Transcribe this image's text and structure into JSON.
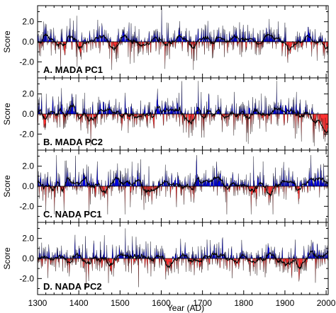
{
  "chart_data": {
    "type": "area",
    "xlabel": "Year (AD)",
    "ylabel": "Score",
    "xlim": [
      1300,
      2005
    ],
    "ylim": [
      -3.6,
      3.6
    ],
    "x_ticks": [
      1300,
      1400,
      1500,
      1600,
      1700,
      1800,
      1900,
      2000
    ],
    "y_ticks": [
      -2.0,
      0.0,
      2.0
    ],
    "y_tick_labels": [
      "-2.0",
      "0.0",
      "2.0"
    ],
    "colors": {
      "positive": "#0000e0",
      "negative": "#ff3030",
      "line": "#000000"
    },
    "panels": [
      {
        "label": "A. MADA PC1",
        "series": {
          "annual_range": [
            -2.8,
            3.5
          ],
          "smoothed_x": [
            1300,
            1320,
            1340,
            1360,
            1380,
            1400,
            1420,
            1440,
            1460,
            1480,
            1500,
            1520,
            1540,
            1560,
            1580,
            1600,
            1620,
            1640,
            1660,
            1680,
            1700,
            1720,
            1740,
            1760,
            1780,
            1800,
            1820,
            1840,
            1860,
            1880,
            1900,
            1920,
            1940,
            1960,
            1980,
            2000
          ],
          "smoothed_y": [
            0.2,
            0.3,
            0.1,
            -0.4,
            0.2,
            0.1,
            -0.2,
            0.3,
            0.2,
            -0.6,
            0.1,
            0.4,
            0.0,
            -0.3,
            0.2,
            0.1,
            -0.5,
            0.3,
            0.2,
            0.1,
            0.4,
            -0.2,
            0.3,
            0.1,
            0.2,
            0.4,
            -0.3,
            0.2,
            0.5,
            0.1,
            -0.4,
            -0.8,
            0.3,
            0.6,
            0.2,
            -0.6
          ]
        }
      },
      {
        "label": "B. MADA PC2",
        "series": {
          "annual_range": [
            -3.2,
            3.3
          ],
          "smoothed_x": [
            1300,
            1320,
            1340,
            1360,
            1380,
            1400,
            1420,
            1440,
            1460,
            1480,
            1500,
            1520,
            1540,
            1560,
            1580,
            1600,
            1620,
            1640,
            1660,
            1680,
            1700,
            1720,
            1740,
            1760,
            1780,
            1800,
            1820,
            1840,
            1860,
            1880,
            1900,
            1920,
            1940,
            1960,
            1980,
            2000
          ],
          "smoothed_y": [
            0.1,
            -0.5,
            0.3,
            0.0,
            0.4,
            0.2,
            -0.4,
            -0.2,
            0.3,
            0.1,
            0.2,
            -0.3,
            0.1,
            -0.4,
            0.0,
            0.6,
            0.5,
            0.3,
            -0.5,
            -0.3,
            0.2,
            0.0,
            0.1,
            0.2,
            -0.2,
            0.1,
            0.4,
            0.2,
            0.3,
            0.2,
            0.1,
            0.5,
            0.3,
            0.1,
            -0.5,
            -1.8
          ]
        }
      },
      {
        "label": "C. NADA PC1",
        "series": {
          "annual_range": [
            -2.8,
            3.1
          ],
          "smoothed_x": [
            1300,
            1320,
            1340,
            1360,
            1380,
            1400,
            1420,
            1440,
            1460,
            1480,
            1500,
            1520,
            1540,
            1560,
            1580,
            1600,
            1620,
            1640,
            1660,
            1680,
            1700,
            1720,
            1740,
            1760,
            1780,
            1800,
            1820,
            1840,
            1860,
            1880,
            1900,
            1920,
            1940,
            1960,
            1980,
            2000
          ],
          "smoothed_y": [
            0.3,
            0.2,
            -0.3,
            0.4,
            0.1,
            0.2,
            0.3,
            0.1,
            -0.4,
            0.2,
            0.3,
            0.1,
            0.2,
            -0.2,
            -0.8,
            0.1,
            0.5,
            0.3,
            0.2,
            -0.3,
            0.4,
            0.2,
            0.5,
            0.1,
            0.3,
            0.2,
            -0.3,
            0.4,
            -0.5,
            0.1,
            0.5,
            0.3,
            -0.3,
            0.4,
            0.6,
            0.2
          ]
        }
      },
      {
        "label": "D. NADA PC2",
        "series": {
          "annual_range": [
            -3.0,
            3.0
          ],
          "smoothed_x": [
            1300,
            1320,
            1340,
            1360,
            1380,
            1400,
            1420,
            1440,
            1460,
            1480,
            1500,
            1520,
            1540,
            1560,
            1580,
            1600,
            1620,
            1640,
            1660,
            1680,
            1700,
            1720,
            1740,
            1760,
            1780,
            1800,
            1820,
            1840,
            1860,
            1880,
            1900,
            1920,
            1940,
            1960,
            1980,
            2000
          ],
          "smoothed_y": [
            0.0,
            0.3,
            -0.5,
            0.2,
            -0.4,
            0.3,
            -0.6,
            0.1,
            0.2,
            -0.8,
            0.4,
            0.2,
            0.3,
            0.1,
            -0.3,
            0.4,
            -0.7,
            0.2,
            0.3,
            -0.4,
            0.1,
            0.3,
            0.5,
            0.2,
            -0.2,
            0.3,
            -0.4,
            0.1,
            0.6,
            -0.2,
            -0.5,
            0.3,
            -1.2,
            0.5,
            0.3,
            0.4
          ]
        }
      }
    ]
  }
}
